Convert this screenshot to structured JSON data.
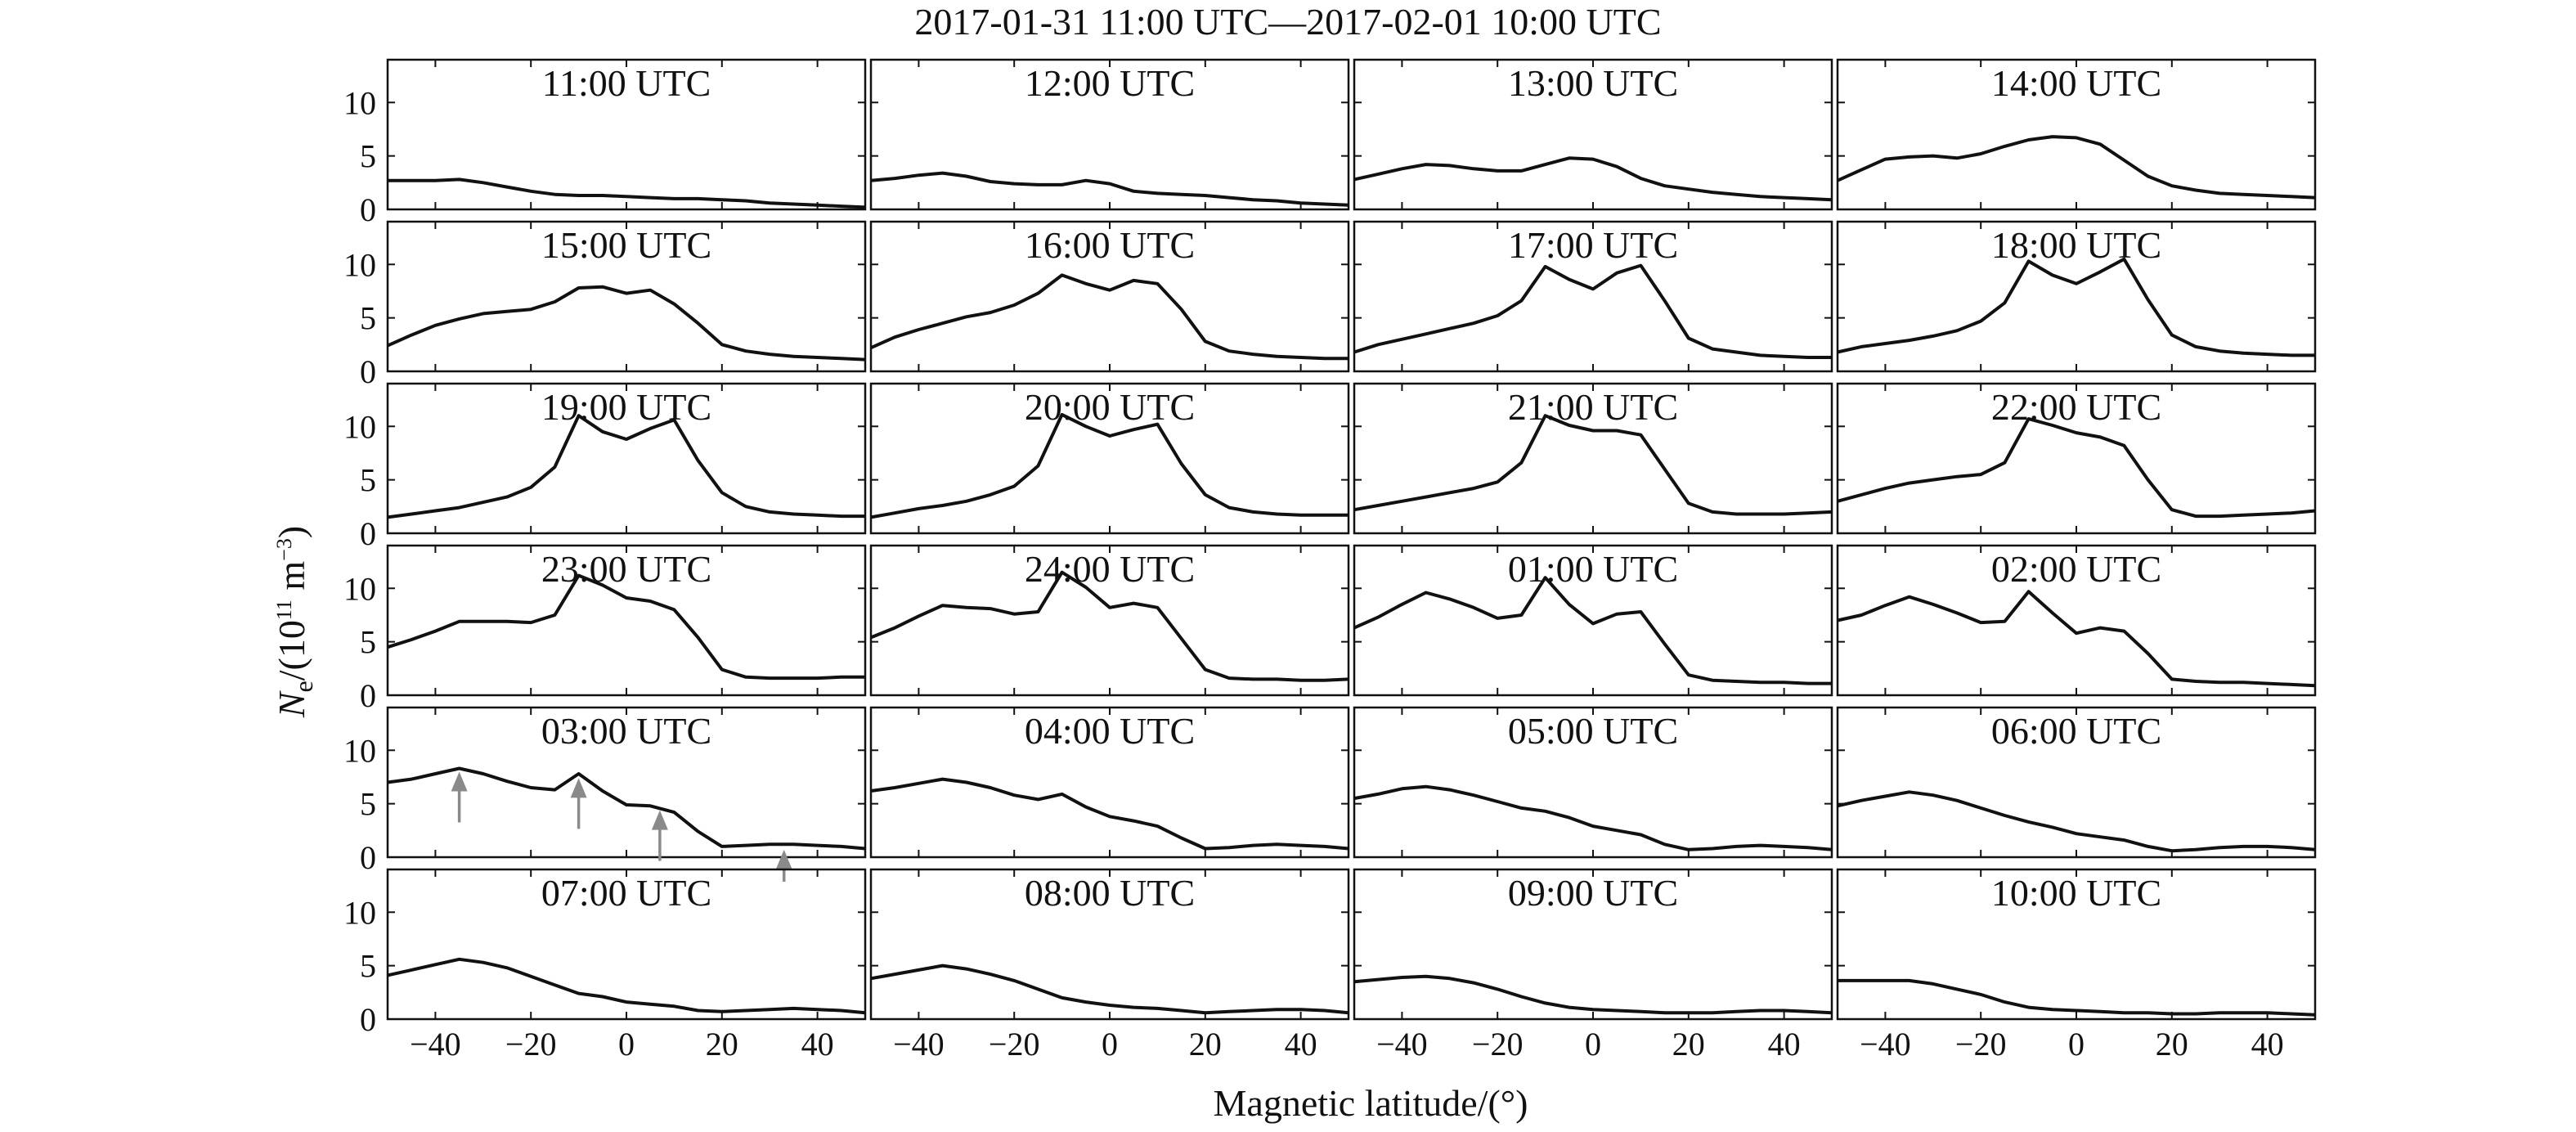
{
  "title": "2017-01-31 11:00 UTC—2017-02-01 10:00 UTC",
  "xlabel": "Magnetic latitude/(°)",
  "ylabel": {
    "base": "N",
    "sub": "e",
    "rest1": "/(10",
    "sup1": "11",
    "rest2": " m",
    "sup2": "−3",
    "rest3": ")"
  },
  "chart_data": {
    "type": "line",
    "layout": "small multiples, 6 rows x 4 columns",
    "title": "2017-01-31 11:00 UTC—2017-02-01 10:00 UTC",
    "xlabel": "Magnetic latitude/(°)",
    "ylabel": "Ne/(10^11 m^-3)",
    "xlim": [
      -50,
      50
    ],
    "ylim": [
      0,
      14
    ],
    "xticks": [
      -40,
      -20,
      0,
      20,
      40
    ],
    "yticks": [
      0,
      5,
      10
    ],
    "x": [
      -50,
      -45,
      -40,
      -35,
      -30,
      -25,
      -20,
      -15,
      -10,
      -5,
      0,
      5,
      10,
      15,
      20,
      25,
      30,
      35,
      40,
      45,
      50
    ],
    "panels": [
      {
        "label": "11:00 UTC",
        "values": [
          2.7,
          2.7,
          2.7,
          2.8,
          2.5,
          2.1,
          1.7,
          1.4,
          1.3,
          1.3,
          1.2,
          1.1,
          1.0,
          1.0,
          0.9,
          0.8,
          0.6,
          0.5,
          0.4,
          0.3,
          0.2
        ]
      },
      {
        "label": "12:00 UTC",
        "values": [
          2.7,
          2.9,
          3.2,
          3.4,
          3.1,
          2.6,
          2.4,
          2.3,
          2.3,
          2.7,
          2.4,
          1.7,
          1.5,
          1.4,
          1.3,
          1.1,
          0.9,
          0.8,
          0.6,
          0.5,
          0.4
        ]
      },
      {
        "label": "13:00 UTC",
        "values": [
          2.8,
          3.3,
          3.8,
          4.2,
          4.1,
          3.8,
          3.6,
          3.6,
          4.2,
          4.8,
          4.7,
          4.0,
          2.9,
          2.2,
          1.9,
          1.6,
          1.4,
          1.2,
          1.1,
          1.0,
          0.9
        ]
      },
      {
        "label": "14:00 UTC",
        "values": [
          2.7,
          3.7,
          4.7,
          4.9,
          5.0,
          4.8,
          5.2,
          5.9,
          6.5,
          6.8,
          6.7,
          6.1,
          4.6,
          3.1,
          2.2,
          1.8,
          1.5,
          1.4,
          1.3,
          1.2,
          1.1
        ]
      },
      {
        "label": "15:00 UTC",
        "values": [
          2.4,
          3.4,
          4.3,
          4.9,
          5.4,
          5.6,
          5.8,
          6.5,
          7.8,
          7.9,
          7.3,
          7.6,
          6.3,
          4.5,
          2.5,
          1.9,
          1.6,
          1.4,
          1.3,
          1.2,
          1.1
        ]
      },
      {
        "label": "16:00 UTC",
        "values": [
          2.2,
          3.2,
          3.9,
          4.5,
          5.1,
          5.5,
          6.2,
          7.3,
          9.0,
          8.2,
          7.6,
          8.5,
          8.2,
          5.8,
          2.8,
          1.9,
          1.6,
          1.4,
          1.3,
          1.2,
          1.2
        ]
      },
      {
        "label": "17:00 UTC",
        "values": [
          1.8,
          2.5,
          3.0,
          3.5,
          4.0,
          4.5,
          5.2,
          6.6,
          9.8,
          8.6,
          7.7,
          9.2,
          9.9,
          6.6,
          3.1,
          2.1,
          1.8,
          1.5,
          1.4,
          1.3,
          1.3
        ]
      },
      {
        "label": "18:00 UTC",
        "values": [
          1.8,
          2.3,
          2.6,
          2.9,
          3.3,
          3.8,
          4.7,
          6.4,
          10.3,
          9.0,
          8.2,
          9.3,
          10.5,
          6.7,
          3.4,
          2.3,
          1.9,
          1.7,
          1.6,
          1.5,
          1.5
        ]
      },
      {
        "label": "19:00 UTC",
        "values": [
          1.5,
          1.8,
          2.1,
          2.4,
          2.9,
          3.4,
          4.3,
          6.2,
          11.0,
          9.5,
          8.8,
          9.8,
          10.6,
          6.8,
          3.8,
          2.5,
          2.0,
          1.8,
          1.7,
          1.6,
          1.6
        ]
      },
      {
        "label": "20:00 UTC",
        "values": [
          1.5,
          1.9,
          2.3,
          2.6,
          3.0,
          3.6,
          4.4,
          6.3,
          11.1,
          10.0,
          9.1,
          9.7,
          10.2,
          6.5,
          3.6,
          2.4,
          2.0,
          1.8,
          1.7,
          1.7,
          1.7
        ]
      },
      {
        "label": "21:00 UTC",
        "values": [
          2.2,
          2.6,
          3.0,
          3.4,
          3.8,
          4.2,
          4.8,
          6.6,
          11.0,
          10.1,
          9.6,
          9.6,
          9.2,
          6.0,
          2.8,
          2.0,
          1.8,
          1.8,
          1.8,
          1.9,
          2.0
        ]
      },
      {
        "label": "22:00 UTC",
        "values": [
          3.0,
          3.6,
          4.2,
          4.7,
          5.0,
          5.3,
          5.5,
          6.6,
          10.7,
          10.1,
          9.4,
          9.0,
          8.2,
          5.0,
          2.2,
          1.6,
          1.6,
          1.7,
          1.8,
          1.9,
          2.1
        ]
      },
      {
        "label": "23:00 UTC",
        "values": [
          4.5,
          5.2,
          6.0,
          6.9,
          6.9,
          6.9,
          6.8,
          7.5,
          11.2,
          10.3,
          9.1,
          8.8,
          8.0,
          5.4,
          2.4,
          1.7,
          1.6,
          1.6,
          1.6,
          1.7,
          1.7
        ]
      },
      {
        "label": "24:00 UTC",
        "values": [
          5.4,
          6.3,
          7.4,
          8.4,
          8.2,
          8.1,
          7.6,
          7.8,
          11.5,
          10.1,
          8.2,
          8.6,
          8.2,
          5.3,
          2.4,
          1.6,
          1.5,
          1.5,
          1.4,
          1.4,
          1.5
        ]
      },
      {
        "label": "01:00 UTC",
        "values": [
          6.3,
          7.3,
          8.5,
          9.6,
          9.0,
          8.2,
          7.2,
          7.5,
          11.0,
          8.5,
          6.7,
          7.6,
          7.8,
          4.8,
          1.9,
          1.4,
          1.3,
          1.2,
          1.2,
          1.1,
          1.1
        ]
      },
      {
        "label": "02:00 UTC",
        "values": [
          7.0,
          7.5,
          8.4,
          9.2,
          8.5,
          7.7,
          6.8,
          6.9,
          9.7,
          7.7,
          5.8,
          6.3,
          6.0,
          3.9,
          1.5,
          1.3,
          1.2,
          1.2,
          1.1,
          1.0,
          0.9
        ]
      },
      {
        "label": "03:00 UTC",
        "values": [
          7.0,
          7.3,
          7.8,
          8.3,
          7.8,
          7.1,
          6.5,
          6.3,
          7.8,
          6.2,
          4.9,
          4.8,
          4.2,
          2.4,
          1.0,
          1.1,
          1.2,
          1.2,
          1.1,
          1.0,
          0.8
        ]
      },
      {
        "label": "04:00 UTC",
        "values": [
          6.2,
          6.5,
          6.9,
          7.3,
          7.0,
          6.5,
          5.8,
          5.4,
          5.9,
          4.7,
          3.8,
          3.4,
          2.9,
          1.8,
          0.8,
          0.9,
          1.1,
          1.2,
          1.1,
          1.0,
          0.8
        ]
      },
      {
        "label": "05:00 UTC",
        "values": [
          5.5,
          5.9,
          6.4,
          6.6,
          6.3,
          5.8,
          5.2,
          4.6,
          4.3,
          3.7,
          2.9,
          2.5,
          2.1,
          1.2,
          0.7,
          0.8,
          1.0,
          1.1,
          1.0,
          0.9,
          0.7
        ]
      },
      {
        "label": "06:00 UTC",
        "values": [
          4.8,
          5.3,
          5.7,
          6.1,
          5.8,
          5.3,
          4.6,
          3.9,
          3.3,
          2.8,
          2.2,
          1.9,
          1.6,
          1.0,
          0.6,
          0.7,
          0.9,
          1.0,
          1.0,
          0.9,
          0.7
        ]
      },
      {
        "label": "07:00 UTC",
        "values": [
          4.1,
          4.6,
          5.1,
          5.6,
          5.3,
          4.8,
          4.0,
          3.2,
          2.4,
          2.1,
          1.6,
          1.4,
          1.2,
          0.8,
          0.7,
          0.8,
          0.9,
          1.0,
          0.9,
          0.8,
          0.6
        ]
      },
      {
        "label": "08:00 UTC",
        "values": [
          3.8,
          4.2,
          4.6,
          5.0,
          4.7,
          4.2,
          3.6,
          2.8,
          2.0,
          1.6,
          1.3,
          1.1,
          1.0,
          0.8,
          0.6,
          0.7,
          0.8,
          0.9,
          0.9,
          0.8,
          0.6
        ]
      },
      {
        "label": "09:00 UTC",
        "values": [
          3.5,
          3.7,
          3.9,
          4.0,
          3.8,
          3.4,
          2.8,
          2.1,
          1.5,
          1.1,
          0.9,
          0.8,
          0.7,
          0.6,
          0.6,
          0.6,
          0.7,
          0.8,
          0.8,
          0.7,
          0.6
        ]
      },
      {
        "label": "10:00 UTC",
        "values": [
          3.6,
          3.6,
          3.6,
          3.6,
          3.3,
          2.8,
          2.3,
          1.6,
          1.1,
          0.9,
          0.8,
          0.7,
          0.6,
          0.6,
          0.5,
          0.5,
          0.6,
          0.6,
          0.6,
          0.5,
          0.4
        ]
      }
    ],
    "annotations": [
      {
        "panel": "03:00 UTC",
        "type": "arrow",
        "x": -35,
        "y": 8.3,
        "color": "#8a8a8a"
      },
      {
        "panel": "03:00 UTC",
        "type": "arrow",
        "x": -10,
        "y": 7.7,
        "color": "#8a8a8a"
      },
      {
        "panel": "03:00 UTC",
        "type": "arrow",
        "x": 7,
        "y": 4.7,
        "color": "#8a8a8a"
      },
      {
        "panel": "03:00 UTC",
        "type": "arrow",
        "x": 33,
        "y": 1.0,
        "color": "#8a8a8a"
      }
    ],
    "line_color": "#111111",
    "grid": false,
    "legend": "none"
  }
}
